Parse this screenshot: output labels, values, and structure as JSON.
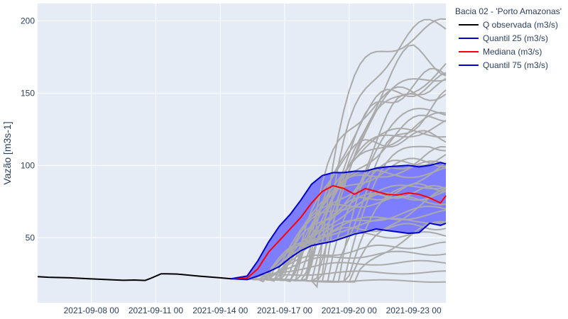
{
  "chart_data": {
    "type": "line",
    "title": "",
    "xlabel": "",
    "ylabel": "Vazão [m3s-1]",
    "xlim": [
      "2021-09-05 12:00",
      "2021-09-24 12:00"
    ],
    "ylim": [
      5,
      212
    ],
    "grid": true,
    "legend_position": "top-right",
    "x_ticks": [
      "2021-09-08 00",
      "2021-09-11 00",
      "2021-09-14 00",
      "2021-09-17 00",
      "2021-09-20 00",
      "2021-09-23 00"
    ],
    "y_ticks": [
      50,
      100,
      150,
      200
    ],
    "legend_title": "Bacia 02 - 'Porto Amazonas'",
    "colors": {
      "plot_bg": "#e5ecf6",
      "grid": "#ffffff",
      "observed": "#000000",
      "quantile": "#0000cc",
      "median": "#ff0000",
      "band_fill": "#7777ff",
      "members": "#aaaaaa"
    },
    "series": [
      {
        "name": "Q observada (m3/s)",
        "x": [
          "2021-09-05 12:00",
          "2021-09-06 00:00",
          "2021-09-07 00:00",
          "2021-09-08 00:00",
          "2021-09-09 00:00",
          "2021-09-09 12:00",
          "2021-09-10 00:00",
          "2021-09-10 12:00",
          "2021-09-10 18:00",
          "2021-09-11 06:00",
          "2021-09-11 12:00",
          "2021-09-12 00:00",
          "2021-09-13 00:00",
          "2021-09-14 00:00",
          "2021-09-14 12:00"
        ],
        "values": [
          23.0,
          22.6,
          22.2,
          21.5,
          20.8,
          20.5,
          20.7,
          20.4,
          21.8,
          25.0,
          25.0,
          24.8,
          23.4,
          22.2,
          21.6
        ]
      },
      {
        "name": "Quantil 25 (m3/s)",
        "x": [
          "2021-09-14 12:00",
          "2021-09-15 06:00",
          "2021-09-15 18:00",
          "2021-09-16 06:00",
          "2021-09-16 18:00",
          "2021-09-17 06:00",
          "2021-09-17 18:00",
          "2021-09-18 06:00",
          "2021-09-18 18:00",
          "2021-09-19 06:00",
          "2021-09-19 18:00",
          "2021-09-20 06:00",
          "2021-09-20 18:00",
          "2021-09-21 06:00",
          "2021-09-21 18:00",
          "2021-09-22 06:00",
          "2021-09-22 18:00",
          "2021-09-23 06:00",
          "2021-09-23 18:00",
          "2021-09-24 06:00",
          "2021-09-24 12:00"
        ],
        "values": [
          21.6,
          21.0,
          23.5,
          26.5,
          30.0,
          36.0,
          41.0,
          44.5,
          46.0,
          47.5,
          50.0,
          52.5,
          54.0,
          56.0,
          55.0,
          54.0,
          53.0,
          53.5,
          60.0,
          58.5,
          60.0
        ]
      },
      {
        "name": "Mediana (m3/s)",
        "x": [
          "2021-09-14 12:00",
          "2021-09-15 06:00",
          "2021-09-15 18:00",
          "2021-09-16 06:00",
          "2021-09-16 18:00",
          "2021-09-17 06:00",
          "2021-09-17 18:00",
          "2021-09-18 06:00",
          "2021-09-18 18:00",
          "2021-09-19 06:00",
          "2021-09-19 18:00",
          "2021-09-20 06:00",
          "2021-09-20 18:00",
          "2021-09-21 06:00",
          "2021-09-21 18:00",
          "2021-09-22 06:00",
          "2021-09-22 18:00",
          "2021-09-23 06:00",
          "2021-09-23 18:00",
          "2021-09-24 06:00",
          "2021-09-24 12:00"
        ],
        "values": [
          21.6,
          22.0,
          28.5,
          40.0,
          48.0,
          56.0,
          64.0,
          74.0,
          82.0,
          86.0,
          84.0,
          80.0,
          84.0,
          82.0,
          80.0,
          79.5,
          81.0,
          80.0,
          77.5,
          74.0,
          79.0
        ]
      },
      {
        "name": "Quantil 75 (m3/s)",
        "x": [
          "2021-09-14 12:00",
          "2021-09-15 06:00",
          "2021-09-15 18:00",
          "2021-09-16 06:00",
          "2021-09-16 18:00",
          "2021-09-17 06:00",
          "2021-09-17 18:00",
          "2021-09-18 06:00",
          "2021-09-18 18:00",
          "2021-09-19 06:00",
          "2021-09-19 18:00",
          "2021-09-20 06:00",
          "2021-09-20 18:00",
          "2021-09-21 06:00",
          "2021-09-21 18:00",
          "2021-09-22 06:00",
          "2021-09-22 18:00",
          "2021-09-23 06:00",
          "2021-09-23 18:00",
          "2021-09-24 06:00",
          "2021-09-24 12:00"
        ],
        "values": [
          21.6,
          23.5,
          34.0,
          47.0,
          58.0,
          66.0,
          76.0,
          87.0,
          93.0,
          95.0,
          95.0,
          96.0,
          96.0,
          98.0,
          99.0,
          99.5,
          100.0,
          99.0,
          100.0,
          102.0,
          101.0
        ]
      }
    ],
    "ensemble_members": {
      "count": 40,
      "start_x": "2021-09-14 12:00",
      "start_value": 21.6,
      "shape_params": [
        [
          1.0,
          20.0
        ],
        [
          1.1,
          26.0
        ],
        [
          1.2,
          33.0
        ],
        [
          1.3,
          40.0
        ],
        [
          1.4,
          46.0
        ],
        [
          1.5,
          52.0
        ],
        [
          1.6,
          58.0
        ],
        [
          1.7,
          63.0
        ],
        [
          1.8,
          68.0
        ],
        [
          1.9,
          72.0
        ],
        [
          2.0,
          76.0
        ],
        [
          2.1,
          80.0
        ],
        [
          2.2,
          84.0
        ],
        [
          2.3,
          88.0
        ],
        [
          2.4,
          92.0
        ],
        [
          2.5,
          96.0
        ],
        [
          2.6,
          100.0
        ],
        [
          2.7,
          105.0
        ],
        [
          2.8,
          110.0
        ],
        [
          2.9,
          115.0
        ],
        [
          3.0,
          120.0
        ],
        [
          3.1,
          126.0
        ],
        [
          3.2,
          132.0
        ],
        [
          3.3,
          138.0
        ],
        [
          3.4,
          145.0
        ],
        [
          3.5,
          152.0
        ],
        [
          3.6,
          160.0
        ],
        [
          3.7,
          168.0
        ],
        [
          3.8,
          176.0
        ],
        [
          3.9,
          185.0
        ],
        [
          4.0,
          195.0
        ],
        [
          4.2,
          201.0
        ],
        [
          4.4,
          198.0
        ],
        [
          4.6,
          178.0
        ],
        [
          4.8,
          165.0
        ],
        [
          5.0,
          140.0
        ],
        [
          5.2,
          125.0
        ],
        [
          5.4,
          108.0
        ],
        [
          5.6,
          90.0
        ],
        [
          5.8,
          70.0
        ]
      ]
    }
  }
}
